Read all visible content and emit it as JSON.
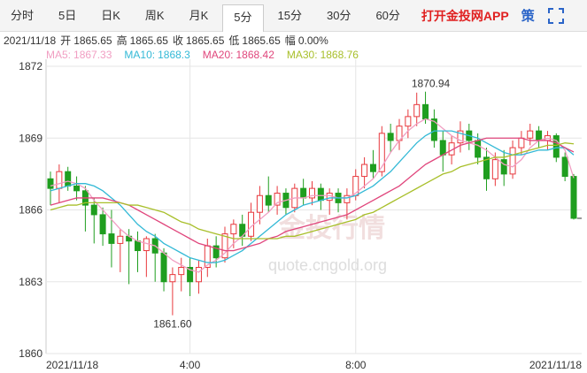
{
  "tabs": {
    "items": [
      "分时",
      "5日",
      "日K",
      "周K",
      "月K",
      "5分",
      "15分",
      "30分",
      "60分"
    ],
    "active": 5,
    "app": "打开金投网APP",
    "extra": "策"
  },
  "info": {
    "date": "2021/11/18",
    "items": [
      {
        "label": "开",
        "value": "1865.65"
      },
      {
        "label": "高",
        "value": "1865.65"
      },
      {
        "label": "收",
        "value": "1865.65"
      },
      {
        "label": "低",
        "value": "1865.65"
      },
      {
        "label": "幅",
        "value": "0.00%"
      }
    ]
  },
  "watermark": {
    "title": "金投行情",
    "url": "quote.cngold.org"
  },
  "chart_data": {
    "type": "candlestick",
    "categories": [
      "2021/11/18",
      null,
      null,
      null,
      null,
      null,
      null,
      null,
      null,
      null,
      null,
      null,
      null,
      null,
      null,
      null,
      "4:00",
      null,
      null,
      null,
      null,
      null,
      null,
      null,
      null,
      null,
      null,
      null,
      null,
      null,
      null,
      null,
      null,
      null,
      null,
      "8:00",
      null,
      null,
      null,
      null,
      null,
      null,
      null,
      null,
      null,
      null,
      null,
      null,
      null,
      null,
      null,
      null,
      null,
      null,
      null,
      null,
      null,
      null,
      null,
      null,
      "2021/11/18"
    ],
    "candles": [
      [
        1867.3,
        1867.6,
        1866.2,
        1866.9
      ],
      [
        1866.9,
        1867.9,
        1866.3,
        1867.6
      ],
      [
        1867.6,
        1867.8,
        1866.8,
        1867.0
      ],
      [
        1867.0,
        1867.4,
        1866.4,
        1866.8
      ],
      [
        1866.8,
        1867.0,
        1865.1,
        1866.2
      ],
      [
        1866.2,
        1866.5,
        1864.6,
        1865.8
      ],
      [
        1865.8,
        1866.1,
        1864.5,
        1865.0
      ],
      [
        1865.0,
        1866.0,
        1863.6,
        1864.6
      ],
      [
        1864.6,
        1865.2,
        1863.4,
        1864.9
      ],
      [
        1864.9,
        1865.2,
        1862.9,
        1864.7
      ],
      [
        1864.7,
        1865.1,
        1863.4,
        1864.3
      ],
      [
        1864.3,
        1864.9,
        1863.2,
        1864.8
      ],
      [
        1864.8,
        1865.0,
        1863.0,
        1864.2
      ],
      [
        1864.2,
        1864.4,
        1862.6,
        1863.0
      ],
      [
        1863.0,
        1863.6,
        1861.6,
        1863.3
      ],
      [
        1863.3,
        1864.0,
        1862.6,
        1863.6
      ],
      [
        1863.6,
        1864.0,
        1862.4,
        1863.0
      ],
      [
        1863.0,
        1863.9,
        1862.5,
        1863.6
      ],
      [
        1863.6,
        1864.8,
        1863.2,
        1864.5
      ],
      [
        1864.5,
        1864.9,
        1863.6,
        1864.0
      ],
      [
        1864.0,
        1865.3,
        1863.8,
        1865.0
      ],
      [
        1865.0,
        1865.6,
        1864.4,
        1865.4
      ],
      [
        1865.4,
        1865.8,
        1864.5,
        1864.9
      ],
      [
        1864.9,
        1866.3,
        1864.7,
        1865.9
      ],
      [
        1865.9,
        1867.0,
        1865.4,
        1866.6
      ],
      [
        1866.6,
        1867.4,
        1865.9,
        1866.2
      ],
      [
        1866.2,
        1867.0,
        1865.8,
        1866.7
      ],
      [
        1866.7,
        1866.9,
        1865.8,
        1866.1
      ],
      [
        1866.1,
        1867.1,
        1865.9,
        1866.9
      ],
      [
        1866.9,
        1867.3,
        1866.2,
        1866.5
      ],
      [
        1866.5,
        1867.2,
        1866.2,
        1866.9
      ],
      [
        1866.9,
        1867.1,
        1866.0,
        1866.4
      ],
      [
        1866.4,
        1866.9,
        1865.8,
        1866.7
      ],
      [
        1866.7,
        1866.9,
        1865.9,
        1866.3
      ],
      [
        1866.3,
        1866.9,
        1865.6,
        1866.6
      ],
      [
        1866.6,
        1867.7,
        1866.4,
        1867.4
      ],
      [
        1867.4,
        1868.2,
        1866.9,
        1867.9
      ],
      [
        1867.9,
        1868.5,
        1867.3,
        1867.6
      ],
      [
        1867.6,
        1869.5,
        1867.4,
        1869.2
      ],
      [
        1869.2,
        1869.6,
        1868.4,
        1868.9
      ],
      [
        1868.9,
        1869.8,
        1868.5,
        1869.5
      ],
      [
        1869.5,
        1870.2,
        1869.0,
        1869.9
      ],
      [
        1869.9,
        1870.9,
        1869.5,
        1870.4
      ],
      [
        1870.4,
        1870.94,
        1869.6,
        1869.8
      ],
      [
        1869.8,
        1870.2,
        1868.6,
        1868.9
      ],
      [
        1868.9,
        1869.3,
        1867.6,
        1868.3
      ],
      [
        1868.3,
        1869.1,
        1867.9,
        1868.8
      ],
      [
        1868.8,
        1869.7,
        1868.4,
        1869.3
      ],
      [
        1869.3,
        1869.6,
        1868.5,
        1868.9
      ],
      [
        1868.9,
        1869.2,
        1867.9,
        1868.2
      ],
      [
        1868.2,
        1868.6,
        1866.8,
        1867.3
      ],
      [
        1867.3,
        1868.4,
        1867.0,
        1868.1
      ],
      [
        1868.1,
        1868.5,
        1867.0,
        1867.5
      ],
      [
        1867.5,
        1868.9,
        1867.3,
        1868.6
      ],
      [
        1868.6,
        1869.3,
        1868.3,
        1869.0
      ],
      [
        1869.0,
        1869.6,
        1868.7,
        1869.3
      ],
      [
        1869.3,
        1869.5,
        1868.6,
        1868.9
      ],
      [
        1868.9,
        1869.3,
        1868.5,
        1869.1
      ],
      [
        1869.1,
        1869.2,
        1868.0,
        1868.2
      ],
      [
        1868.2,
        1868.4,
        1867.2,
        1867.4
      ],
      [
        1867.4,
        1867.5,
        1865.6,
        1865.65
      ]
    ],
    "up_color": "#e8383d",
    "down_color": "#1f9e1f",
    "series": [
      {
        "name": "MA5:",
        "color": "#f19ec2",
        "values": [
          1867.0,
          1867.1,
          1867.2,
          1867.1,
          1866.9,
          1866.4,
          1866.0,
          1865.6,
          1865.2,
          1864.9,
          1864.7,
          1864.6,
          1864.5,
          1864.2,
          1863.9,
          1863.7,
          1863.5,
          1863.4,
          1863.7,
          1863.9,
          1864.2,
          1864.6,
          1864.9,
          1865.3,
          1865.6,
          1865.9,
          1866.3,
          1866.4,
          1866.5,
          1866.5,
          1866.6,
          1866.6,
          1866.6,
          1866.5,
          1866.5,
          1866.7,
          1867.0,
          1867.3,
          1867.8,
          1868.4,
          1868.9,
          1869.3,
          1869.6,
          1869.8,
          1869.7,
          1869.4,
          1869.1,
          1868.9,
          1868.8,
          1868.7,
          1868.5,
          1868.2,
          1867.9,
          1867.8,
          1868.1,
          1868.6,
          1868.9,
          1869.0,
          1868.9,
          1868.5,
          1867.33
        ]
      },
      {
        "name": "MA10:",
        "color": "#33b9d6",
        "values": [
          1866.8,
          1866.9,
          1867.0,
          1867.1,
          1867.1,
          1867.0,
          1866.8,
          1866.5,
          1866.2,
          1865.8,
          1865.4,
          1865.1,
          1864.9,
          1864.6,
          1864.4,
          1864.2,
          1864.0,
          1863.9,
          1863.8,
          1863.8,
          1863.9,
          1864.1,
          1864.3,
          1864.6,
          1864.9,
          1865.2,
          1865.5,
          1865.8,
          1866.0,
          1866.2,
          1866.3,
          1866.4,
          1866.5,
          1866.5,
          1866.5,
          1866.6,
          1866.8,
          1867.0,
          1867.3,
          1867.6,
          1868.0,
          1868.4,
          1868.8,
          1869.1,
          1869.3,
          1869.3,
          1869.3,
          1869.2,
          1869.1,
          1869.0,
          1868.8,
          1868.6,
          1868.4,
          1868.3,
          1868.3,
          1868.4,
          1868.5,
          1868.5,
          1868.6,
          1868.6,
          1868.3
        ]
      },
      {
        "name": "MA20:",
        "color": "#e0467c",
        "values": [
          1866.2,
          1866.3,
          1866.4,
          1866.5,
          1866.5,
          1866.5,
          1866.5,
          1866.4,
          1866.3,
          1866.2,
          1866.0,
          1865.8,
          1865.6,
          1865.4,
          1865.2,
          1865.0,
          1864.8,
          1864.6,
          1864.5,
          1864.4,
          1864.3,
          1864.3,
          1864.4,
          1864.5,
          1864.6,
          1864.8,
          1864.9,
          1865.1,
          1865.2,
          1865.3,
          1865.4,
          1865.5,
          1865.6,
          1865.7,
          1865.8,
          1866.0,
          1866.2,
          1866.4,
          1866.6,
          1866.8,
          1867.0,
          1867.3,
          1867.6,
          1867.9,
          1868.1,
          1868.3,
          1868.5,
          1868.7,
          1868.8,
          1868.9,
          1869.0,
          1869.0,
          1869.0,
          1869.0,
          1869.0,
          1868.9,
          1868.9,
          1868.9,
          1868.8,
          1868.6,
          1868.42
        ]
      },
      {
        "name": "MA30:",
        "color": "#a8bf2a",
        "values": [
          1866.0,
          1866.1,
          1866.2,
          1866.2,
          1866.3,
          1866.3,
          1866.3,
          1866.3,
          1866.3,
          1866.2,
          1866.2,
          1866.1,
          1866.0,
          1865.9,
          1865.7,
          1865.5,
          1865.4,
          1865.2,
          1865.1,
          1865.0,
          1864.9,
          1864.8,
          1864.8,
          1864.8,
          1864.8,
          1864.8,
          1864.8,
          1864.9,
          1864.9,
          1865.0,
          1865.1,
          1865.2,
          1865.3,
          1865.4,
          1865.5,
          1865.6,
          1865.8,
          1865.9,
          1866.1,
          1866.3,
          1866.5,
          1866.7,
          1866.9,
          1867.1,
          1867.3,
          1867.5,
          1867.6,
          1867.8,
          1867.9,
          1868.0,
          1868.1,
          1868.2,
          1868.2,
          1868.3,
          1868.4,
          1868.5,
          1868.6,
          1868.7,
          1868.7,
          1868.8,
          1868.76
        ]
      }
    ],
    "annotations": {
      "high": "1870.94",
      "low": "1861.60"
    },
    "ylim": [
      1860,
      1872
    ],
    "yticks": [
      1860,
      1863,
      1866,
      1869,
      1872
    ],
    "grid": true
  }
}
